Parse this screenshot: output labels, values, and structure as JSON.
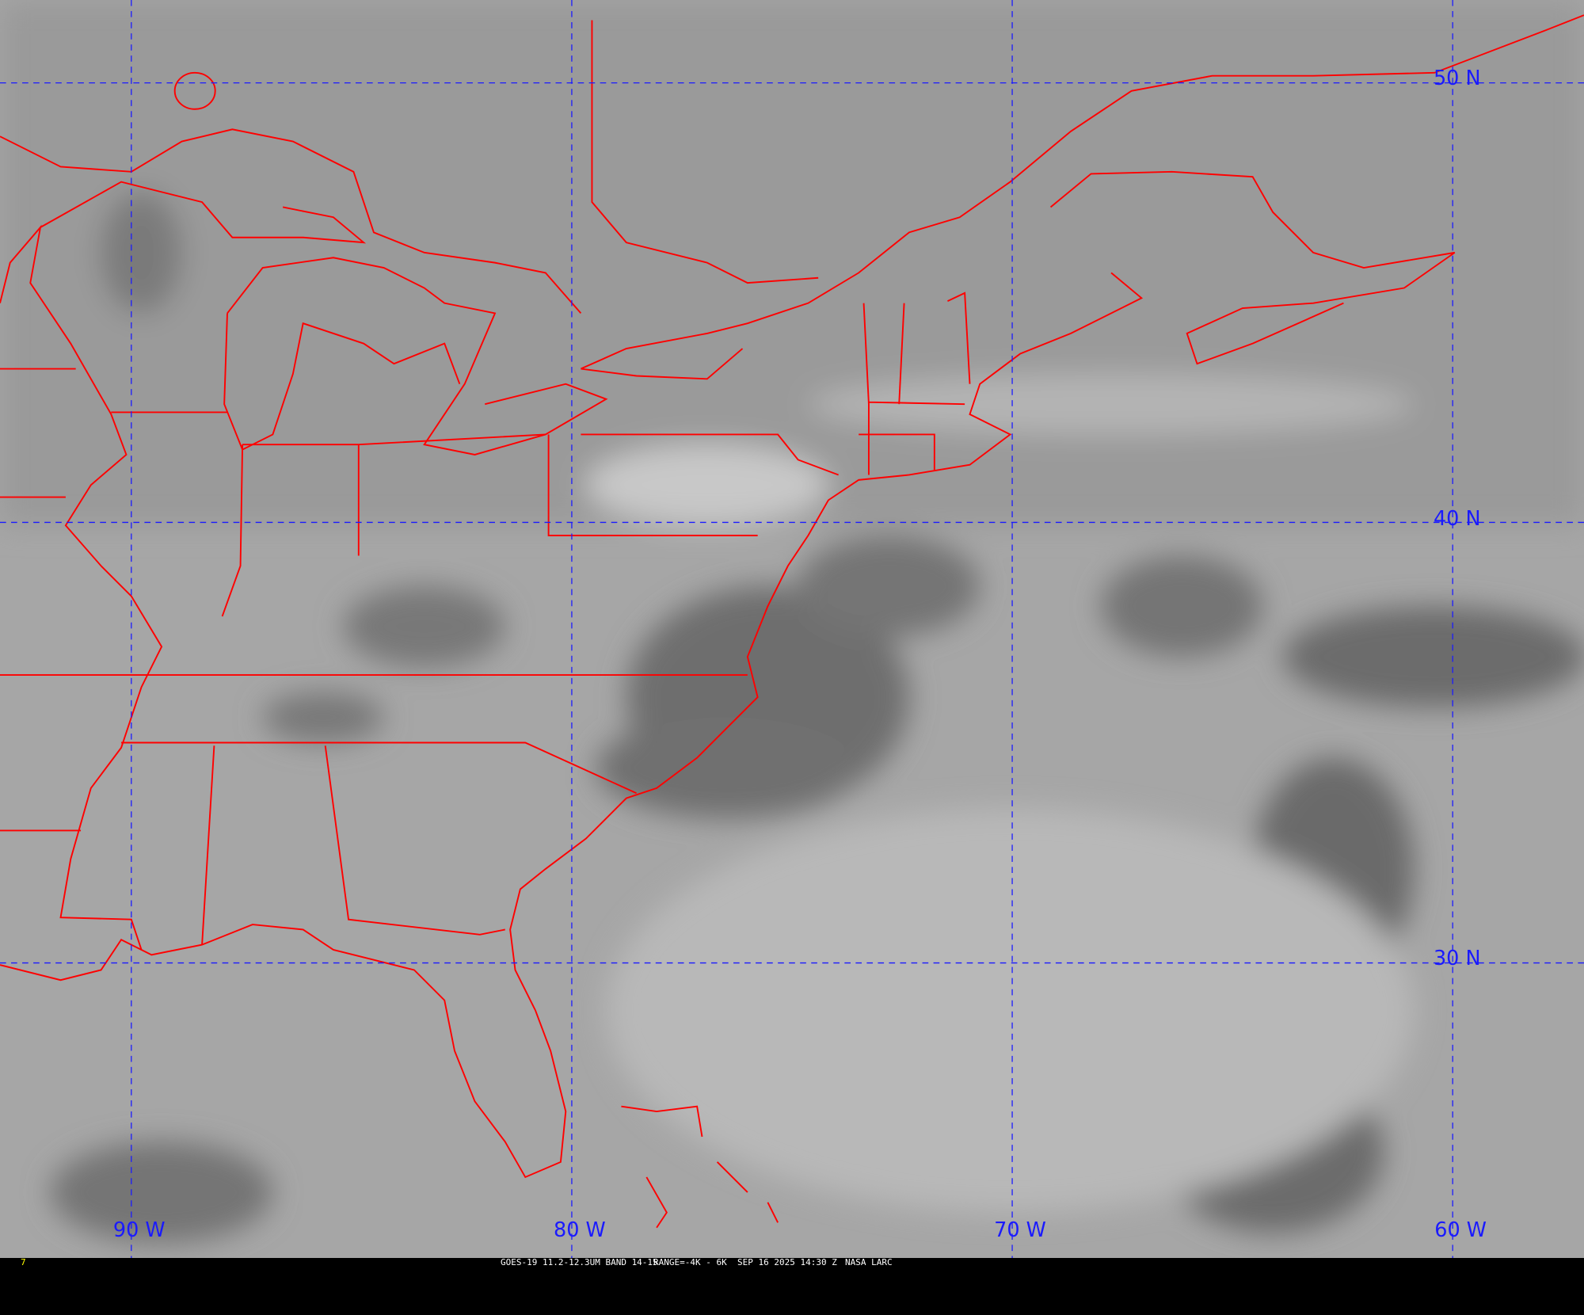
{
  "image": {
    "type": "satellite-infrared-imagery",
    "region": "eastern-north-america-western-atlantic",
    "colors": {
      "background_gray": "#a8a8a8",
      "borders": "#ff0000",
      "grid": "#1a1aff",
      "caption_bg": "#000000",
      "caption_text": "#ffffff",
      "frame_number": "#ffff00"
    }
  },
  "grid": {
    "latitudes": [
      {
        "value": 50,
        "label": "50 N"
      },
      {
        "value": 40,
        "label": "40 N"
      },
      {
        "value": 30,
        "label": "30 N"
      }
    ],
    "longitudes": [
      {
        "value": -90,
        "label": "90 W"
      },
      {
        "value": -80,
        "label": "80 W"
      },
      {
        "value": -70,
        "label": "70 W"
      },
      {
        "value": -60,
        "label": "60 W"
      }
    ]
  },
  "caption": {
    "frame_number": "7",
    "satellite_band": "GOES-19 11.2-12.3UM BAND 14-15",
    "range": "RANGE=-4K - 6K",
    "datetime": "SEP 16 2025 14:30 Z",
    "source": "NASA LARC"
  }
}
